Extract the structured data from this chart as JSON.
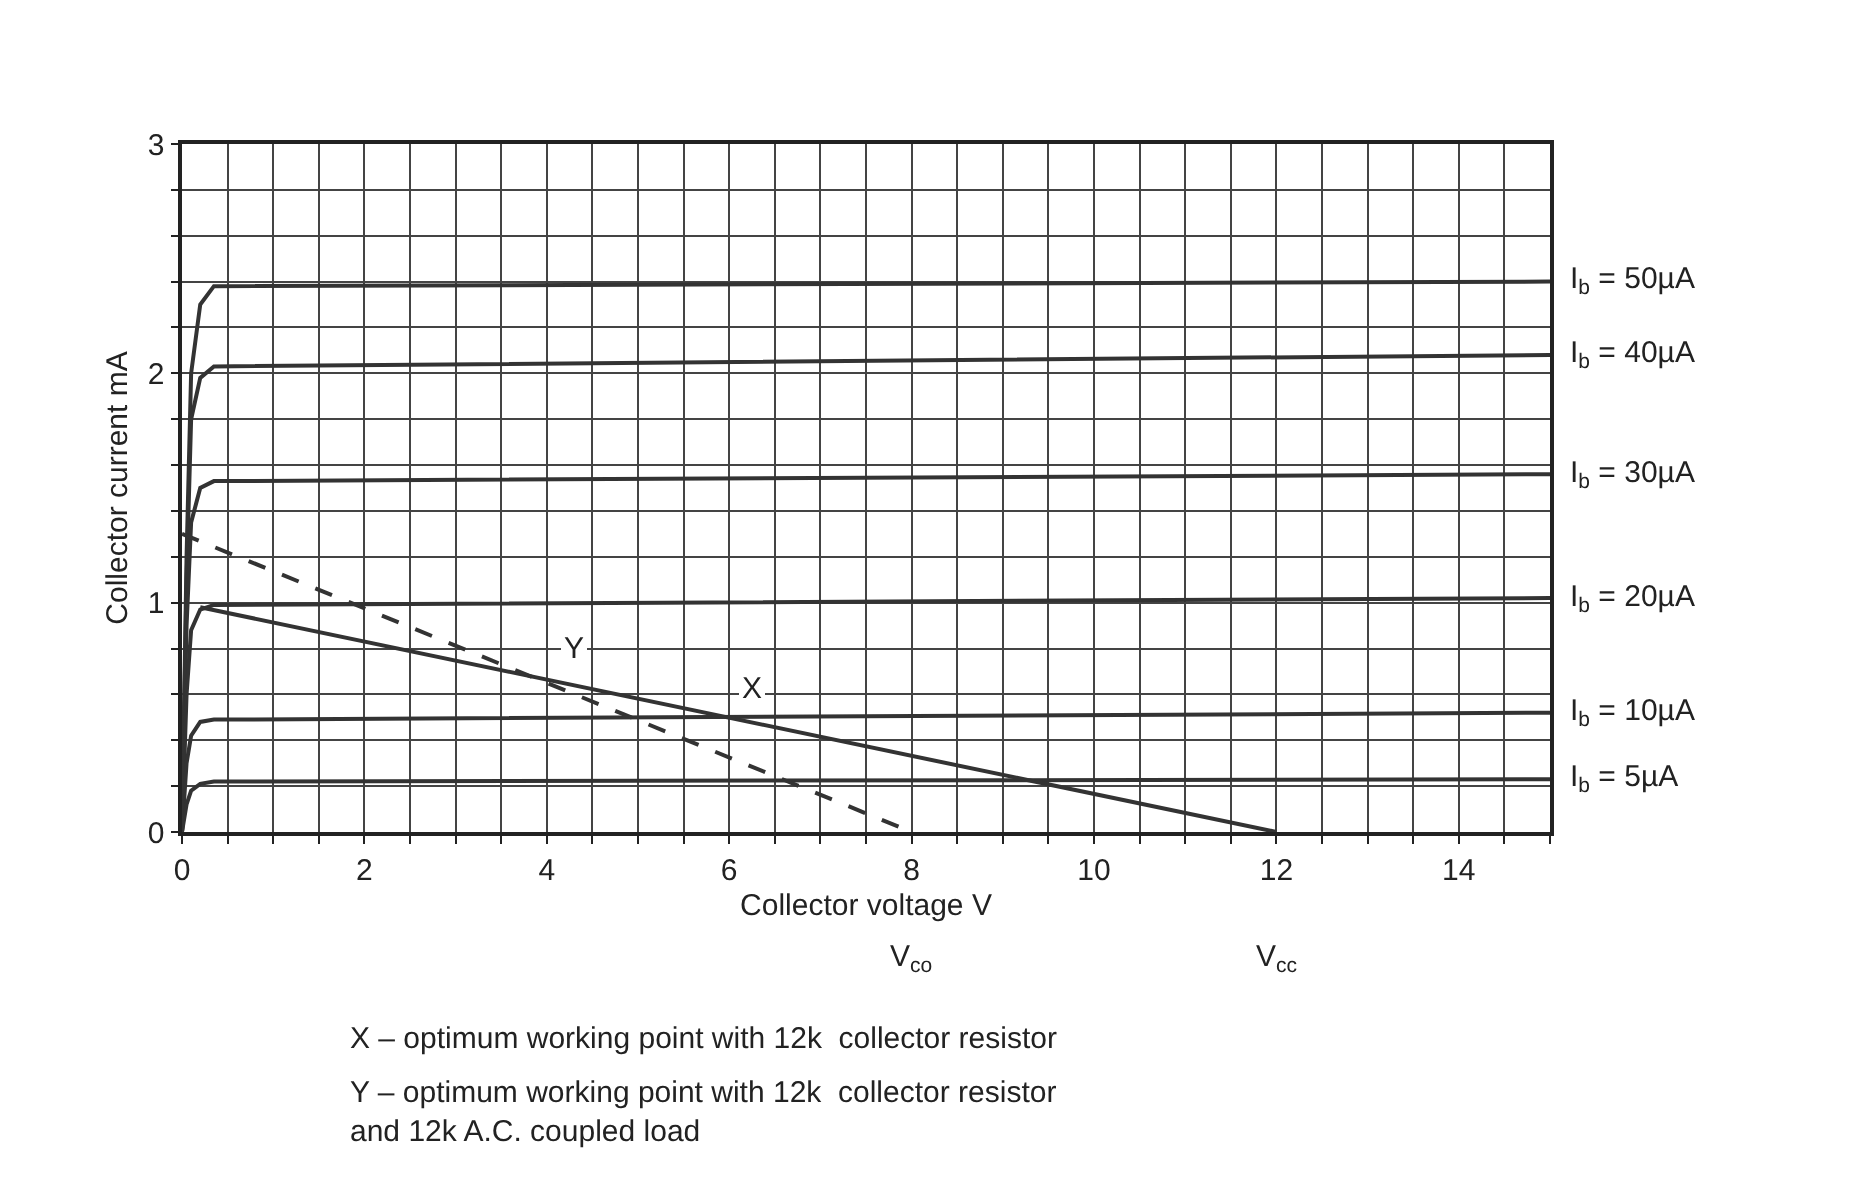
{
  "chart_data": {
    "type": "line",
    "xlabel": "Collector voltage V",
    "ylabel": "Collector current mA",
    "xlim": [
      0,
      15
    ],
    "ylim": [
      0,
      3
    ],
    "xticks": [
      0,
      {
        "value": 0.5,
        "label": null
      },
      {
        "value": 1,
        "label": null
      },
      {
        "value": 1.5,
        "label": null
      },
      2,
      {
        "value": 2.5,
        "label": null
      },
      {
        "value": 3,
        "label": null
      },
      {
        "value": 3.5,
        "label": null
      },
      4,
      {
        "value": 4.5,
        "label": null
      },
      {
        "value": 5,
        "label": null
      },
      {
        "value": 5.5,
        "label": null
      },
      6,
      {
        "value": 6.5,
        "label": null
      },
      {
        "value": 7,
        "label": null
      },
      {
        "value": 7.5,
        "label": null
      },
      8,
      {
        "value": 8.5,
        "label": null
      },
      {
        "value": 9,
        "label": null
      },
      {
        "value": 9.5,
        "label": null
      },
      10,
      {
        "value": 10.5,
        "label": null
      },
      {
        "value": 11,
        "label": null
      },
      {
        "value": 11.5,
        "label": null
      },
      12,
      {
        "value": 12.5,
        "label": null
      },
      {
        "value": 13,
        "label": null
      },
      {
        "value": 13.5,
        "label": null
      },
      14,
      {
        "value": 14.5,
        "label": null
      },
      {
        "value": 15,
        "label": null
      }
    ],
    "yticks": [
      0,
      {
        "value": 0.2,
        "label": null
      },
      {
        "value": 0.4,
        "label": null
      },
      {
        "value": 0.6,
        "label": null
      },
      {
        "value": 0.8,
        "label": null
      },
      1,
      {
        "value": 1.2,
        "label": null
      },
      {
        "value": 1.4,
        "label": null
      },
      {
        "value": 1.6,
        "label": null
      },
      {
        "value": 1.8,
        "label": null
      },
      2,
      {
        "value": 2.2,
        "label": null
      },
      {
        "value": 2.4,
        "label": null
      },
      {
        "value": 2.6,
        "label": null
      },
      {
        "value": 2.8,
        "label": null
      },
      3
    ],
    "grid": true,
    "legend": false,
    "marker": "none",
    "line_style": "solid",
    "series": [
      {
        "name": "I$_{b}$ = 50µA",
        "color": "#333333",
        "x": [
          0,
          0.05,
          0.1,
          0.2,
          0.35,
          15
        ],
        "values": [
          0,
          1.2,
          2.0,
          2.3,
          2.38,
          2.4
        ]
      },
      {
        "name": "I$_{b}$ = 40µA",
        "color": "#333333",
        "x": [
          0,
          0.05,
          0.1,
          0.2,
          0.35,
          15
        ],
        "values": [
          0,
          1.1,
          1.8,
          1.98,
          2.03,
          2.08
        ]
      },
      {
        "name": "I$_{b}$ = 30µA",
        "color": "#333333",
        "x": [
          0,
          0.05,
          0.1,
          0.2,
          0.35,
          15
        ],
        "values": [
          0,
          0.9,
          1.35,
          1.5,
          1.53,
          1.56
        ]
      },
      {
        "name": "I$_{b}$ = 20µA",
        "color": "#333333",
        "x": [
          0,
          0.05,
          0.1,
          0.2,
          0.35,
          15
        ],
        "values": [
          0,
          0.6,
          0.88,
          0.97,
          0.99,
          1.02
        ]
      },
      {
        "name": "I$_{b}$ = 10µA",
        "color": "#333333",
        "x": [
          0,
          0.05,
          0.1,
          0.2,
          0.35,
          15
        ],
        "values": [
          0,
          0.3,
          0.42,
          0.48,
          0.49,
          0.52
        ]
      },
      {
        "name": "I$_{b}$ = 5µA",
        "color": "#333333",
        "x": [
          0,
          0.05,
          0.1,
          0.2,
          0.35,
          15
        ],
        "values": [
          0,
          0.12,
          0.18,
          0.21,
          0.22,
          0.23
        ]
      },
      {
        "color": "#333333",
        "x": [
          0.2,
          12
        ],
        "values": [
          0.98,
          0
        ]
      },
      {
        "color": "#333333",
        "x": [
          0,
          8
        ],
        "values": [
          1.3,
          0
        ],
        "line_style": "dashed"
      }
    ],
    "annotations": [
      {
        "text": "Y",
        "x": 4.3,
        "y": 0.8
      },
      {
        "text": "X",
        "x": 6.25,
        "y": 0.62
      },
      "V$_{co}$",
      "V$_{cc}$",
      "X – optimum working point with 12k  collector resistor",
      "Y – optimum working point with 12k  collector resistor\nand 12k A.C. coupled load"
    ]
  }
}
